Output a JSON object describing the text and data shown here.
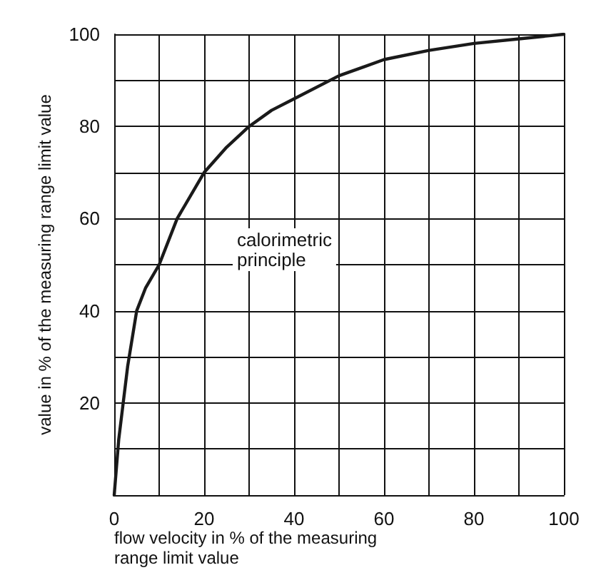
{
  "chart_data": {
    "type": "line",
    "xlabel": "flow velocity in % of the measuring\nrange limit value",
    "ylabel": "value in % of the measuring range limit value",
    "x": [
      0,
      0.5,
      1,
      2,
      3,
      5,
      7,
      10,
      14,
      20,
      25,
      30,
      35,
      40,
      50,
      60,
      70,
      80,
      90,
      100
    ],
    "series": [
      {
        "color": "#1a1a1a",
        "values": [
          0,
          6,
          12,
          20,
          28,
          40,
          45,
          50,
          60,
          70,
          75.5,
          80,
          83.5,
          86,
          91,
          94.5,
          96.5,
          98,
          99,
          100
        ]
      }
    ],
    "xlim": [
      0,
      100
    ],
    "ylim": [
      0,
      100
    ],
    "xticks": [
      0,
      {
        "value": 10,
        "label": null
      },
      20,
      {
        "value": 30,
        "label": null
      },
      40,
      {
        "value": 50,
        "label": null
      },
      60,
      {
        "value": 70,
        "label": null
      },
      80,
      {
        "value": 90,
        "label": null
      },
      100
    ],
    "yticks": [
      {
        "value": 0,
        "label": null
      },
      {
        "value": 10,
        "label": null
      },
      20,
      {
        "value": 30,
        "label": null
      },
      40,
      {
        "value": 50,
        "label": null
      },
      60,
      {
        "value": 70,
        "label": null
      },
      80,
      {
        "value": 90,
        "label": null
      },
      100
    ],
    "annotations": [
      "calorimetric\nprinciple"
    ],
    "grid": true,
    "marker": "none",
    "line_style": "solid"
  }
}
